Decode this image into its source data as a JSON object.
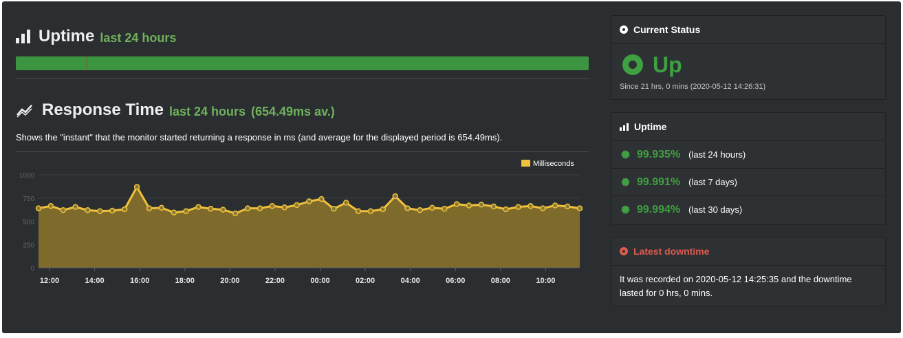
{
  "uptime_section": {
    "title": "Uptime",
    "subtitle": "last 24 hours",
    "bar_color": "#3a9440",
    "down_color": "#b63d2e",
    "downtime_marks": [
      0.124
    ]
  },
  "response_section": {
    "title": "Response Time",
    "subtitle": "last 24 hours",
    "average": "(654.49ms av.)",
    "description": "Shows the \"instant\" that the monitor started returning a response in ms (and average for the displayed period is 654.49ms)."
  },
  "chart_data": {
    "type": "area",
    "legend": "Milliseconds",
    "legend_position": "top-right",
    "ylim": [
      0,
      1000
    ],
    "yticks": [
      "1000",
      "750",
      "500",
      "250",
      "0"
    ],
    "xticks": [
      "12:00",
      "14:00",
      "16:00",
      "18:00",
      "20:00",
      "22:00",
      "00:00",
      "02:00",
      "04:00",
      "06:00",
      "08:00",
      "10:00"
    ],
    "grid": true,
    "line_color": "#f0c13b",
    "fill_color": "#7e6b2c",
    "series": [
      {
        "values": [
          640,
          665,
          620,
          655,
          620,
          610,
          615,
          630,
          870,
          640,
          645,
          595,
          610,
          655,
          635,
          625,
          585,
          640,
          640,
          665,
          650,
          675,
          715,
          740,
          635,
          700,
          610,
          610,
          630,
          770,
          640,
          620,
          645,
          635,
          685,
          670,
          680,
          660,
          630,
          655,
          665,
          640,
          670,
          660,
          640
        ]
      }
    ]
  },
  "current_status": {
    "header": "Current Status",
    "status": "Up",
    "since": "Since 21 hrs, 0 mins (2020-05-12 14:26:31)"
  },
  "uptime_panel": {
    "header": "Uptime",
    "rows": [
      {
        "pct": "99.935%",
        "period": "(last 24 hours)"
      },
      {
        "pct": "99.991%",
        "period": "(last 7 days)"
      },
      {
        "pct": "99.994%",
        "period": "(last 30 days)"
      }
    ]
  },
  "latest_downtime": {
    "header": "Latest downtime",
    "text": "It was recorded on 2020-05-12 14:25:35 and the downtime lasted for 0 hrs, 0 mins."
  }
}
